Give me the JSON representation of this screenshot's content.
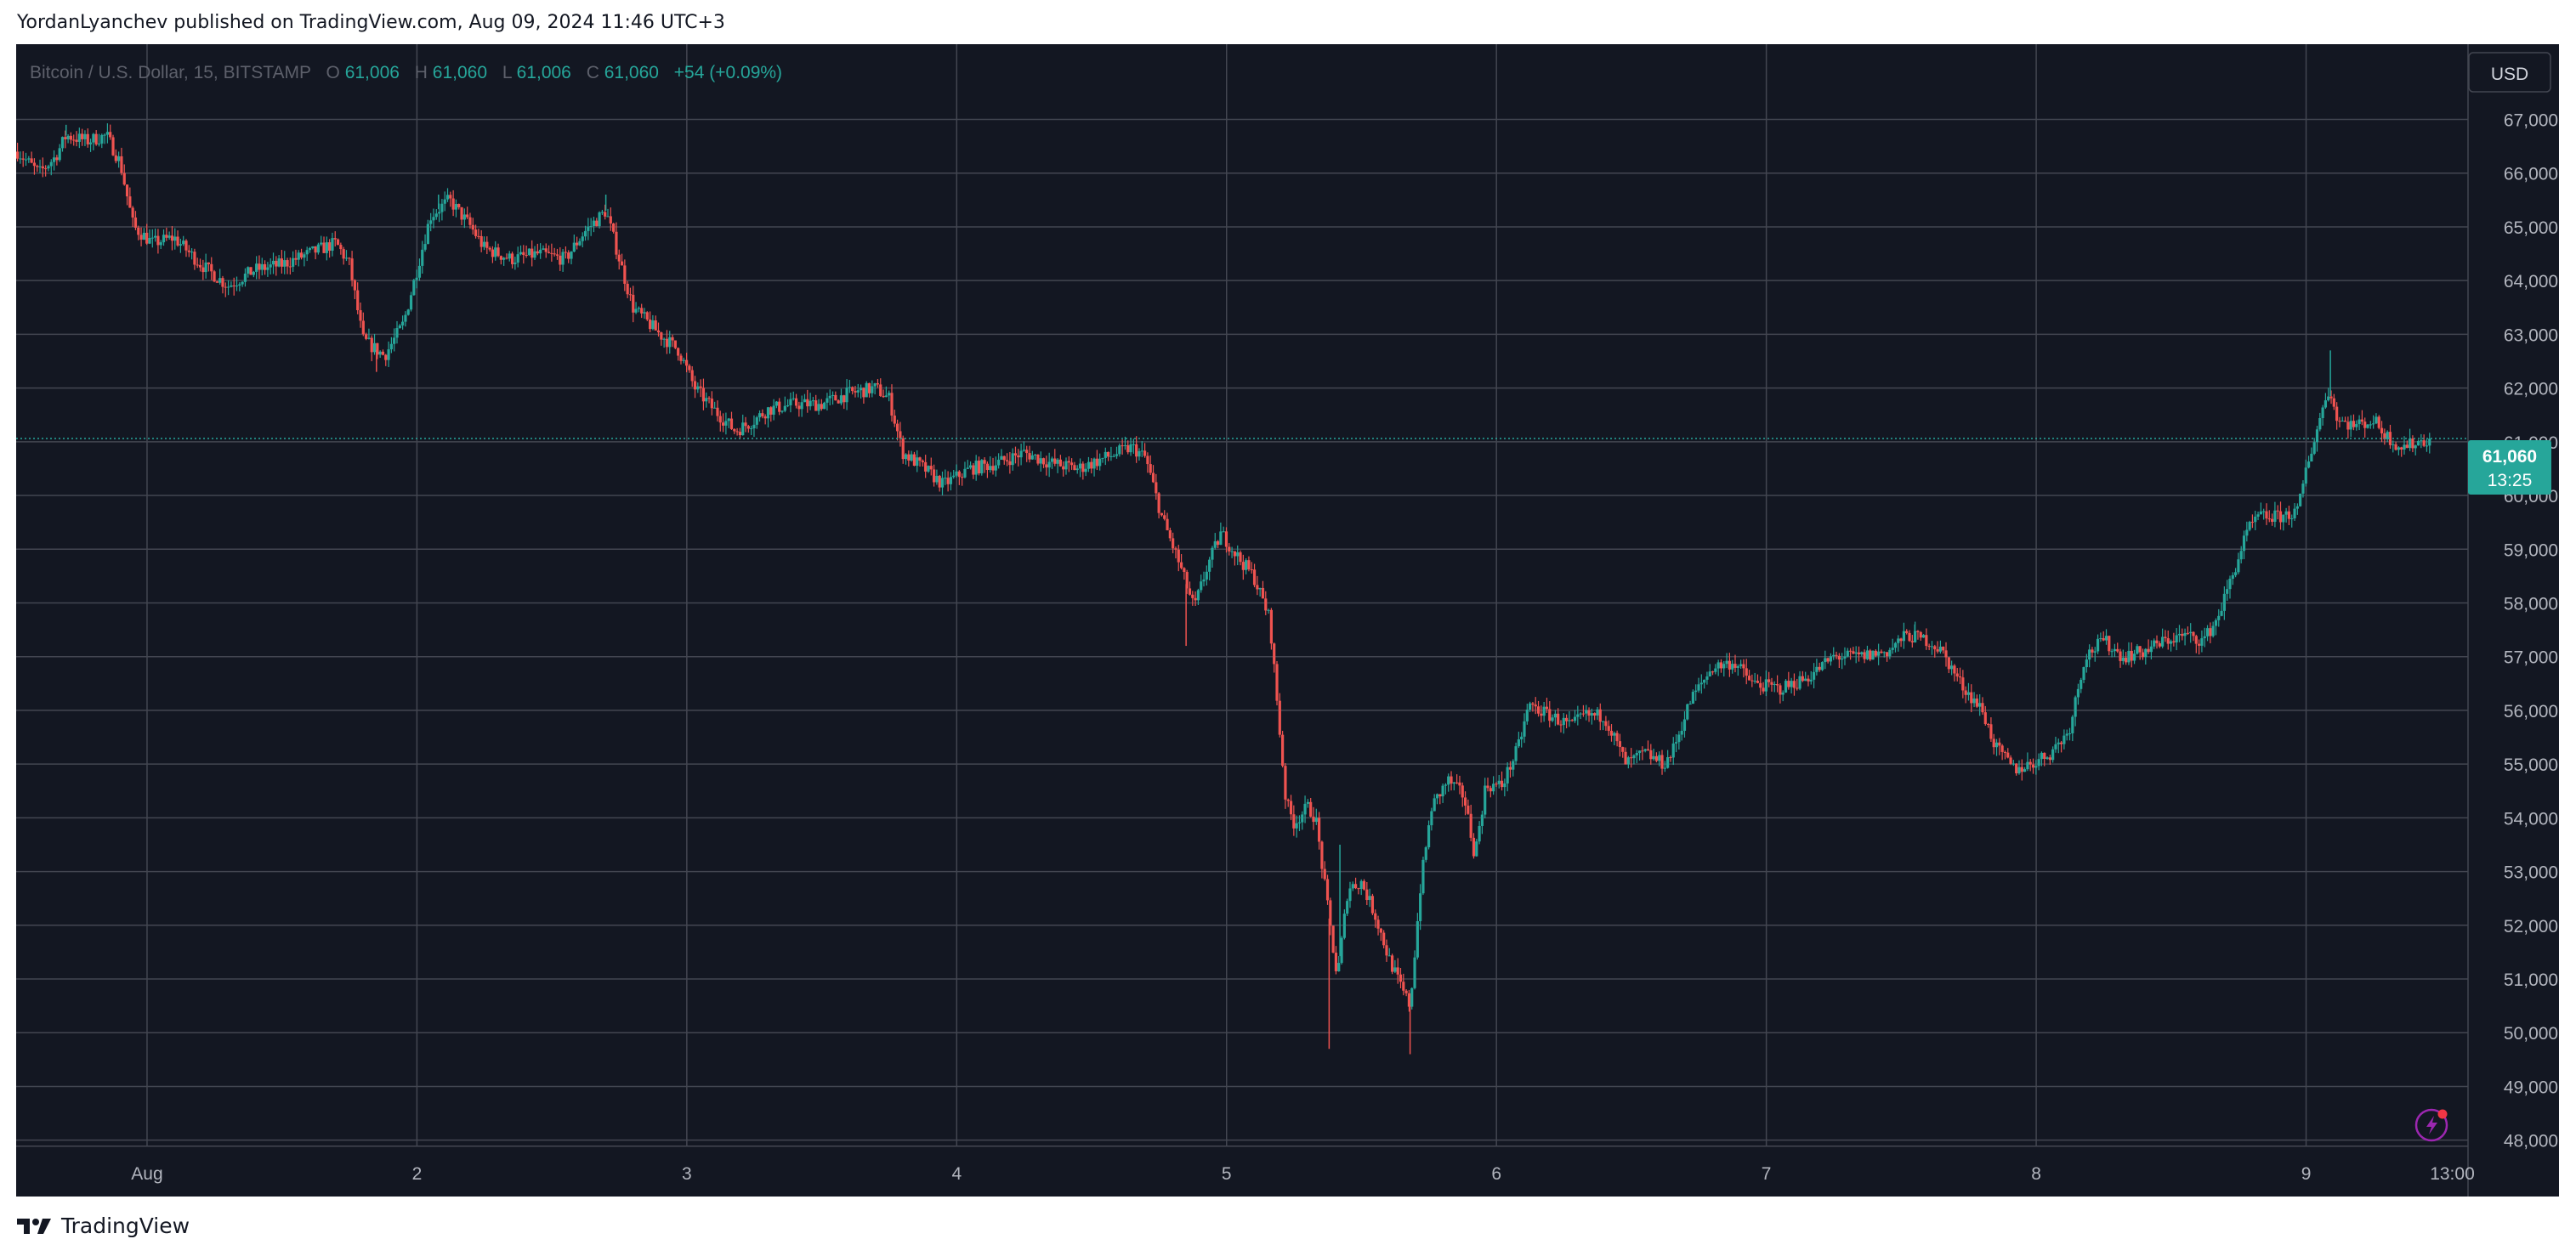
{
  "header": {
    "published_by": "YordanLyanchev published on TradingView.com, Aug 09, 2024 11:46 UTC+3"
  },
  "footer": {
    "brand": "TradingView"
  },
  "colors": {
    "background": "#131722",
    "grid": "#434651",
    "up": "#26a69a",
    "down": "#ef5350",
    "text": "#b2b5be",
    "legend_title": "#5d606b"
  },
  "chart_data": {
    "type": "candlestick",
    "legend": {
      "symbol": "Bitcoin / U.S. Dollar, 15, BITSTAMP",
      "o_label": "O",
      "o_value": "61,006",
      "h_label": "H",
      "h_value": "61,060",
      "l_label": "L",
      "l_value": "61,006",
      "c_label": "C",
      "c_value": "61,060",
      "change": "+54 (+0.09%)"
    },
    "currency": "USD",
    "last_price_label": "61,060",
    "countdown_label": "13:25",
    "last_price": 61060,
    "ylim": [
      47900,
      68400
    ],
    "y_ticks": [
      "67,000",
      "66,000",
      "65,000",
      "64,000",
      "63,000",
      "62,000",
      "61,000",
      "60,000",
      "59,000",
      "58,000",
      "57,000",
      "56,000",
      "55,000",
      "54,000",
      "53,000",
      "52,000",
      "51,000",
      "50,000",
      "49,000",
      "48,000"
    ],
    "y_tick_values": [
      67000,
      66000,
      65000,
      64000,
      63000,
      62000,
      61000,
      60000,
      59000,
      58000,
      57000,
      56000,
      55000,
      54000,
      53000,
      52000,
      51000,
      50000,
      49000,
      48000
    ],
    "x_ticks": [
      "Aug",
      "2",
      "3",
      "4",
      "5",
      "6",
      "7",
      "8",
      "9",
      "13:00"
    ],
    "x_tick_values": [
      1.0,
      2.0,
      3.0,
      4.0,
      5.0,
      6.0,
      7.0,
      8.0,
      9.0,
      9.5417
    ],
    "x_unit": "day of August 2024",
    "xlim": [
      0.515,
      9.6
    ],
    "price_path": [
      [
        0.52,
        66400
      ],
      [
        0.6,
        66000
      ],
      [
        0.66,
        66300
      ],
      [
        0.7,
        66700
      ],
      [
        0.78,
        66600
      ],
      [
        0.85,
        66700
      ],
      [
        0.9,
        66200
      ],
      [
        0.95,
        65000
      ],
      [
        1.02,
        64700
      ],
      [
        1.1,
        64800
      ],
      [
        1.2,
        64300
      ],
      [
        1.3,
        63900
      ],
      [
        1.4,
        64200
      ],
      [
        1.5,
        64300
      ],
      [
        1.6,
        64500
      ],
      [
        1.7,
        64700
      ],
      [
        1.75,
        64300
      ],
      [
        1.8,
        62900
      ],
      [
        1.88,
        62600
      ],
      [
        1.95,
        63200
      ],
      [
        2.0,
        64200
      ],
      [
        2.05,
        65200
      ],
      [
        2.12,
        65500
      ],
      [
        2.2,
        65000
      ],
      [
        2.25,
        64600
      ],
      [
        2.35,
        64400
      ],
      [
        2.45,
        64500
      ],
      [
        2.55,
        64400
      ],
      [
        2.62,
        64900
      ],
      [
        2.7,
        65300
      ],
      [
        2.75,
        64400
      ],
      [
        2.8,
        63500
      ],
      [
        2.9,
        63000
      ],
      [
        2.97,
        62700
      ],
      [
        3.03,
        62000
      ],
      [
        3.1,
        61600
      ],
      [
        3.18,
        61200
      ],
      [
        3.25,
        61400
      ],
      [
        3.3,
        61600
      ],
      [
        3.4,
        61700
      ],
      [
        3.5,
        61700
      ],
      [
        3.6,
        61900
      ],
      [
        3.7,
        62000
      ],
      [
        3.75,
        61800
      ],
      [
        3.8,
        60800
      ],
      [
        3.88,
        60500
      ],
      [
        3.95,
        60200
      ],
      [
        4.05,
        60500
      ],
      [
        4.15,
        60600
      ],
      [
        4.25,
        60800
      ],
      [
        4.35,
        60600
      ],
      [
        4.45,
        60500
      ],
      [
        4.55,
        60700
      ],
      [
        4.65,
        60900
      ],
      [
        4.7,
        60700
      ],
      [
        4.76,
        59600
      ],
      [
        4.82,
        58800
      ],
      [
        4.88,
        57900
      ],
      [
        4.93,
        58700
      ],
      [
        4.98,
        59300
      ],
      [
        5.05,
        58800
      ],
      [
        5.1,
        58500
      ],
      [
        5.16,
        57700
      ],
      [
        5.19,
        56000
      ],
      [
        5.22,
        54300
      ],
      [
        5.25,
        53900
      ],
      [
        5.3,
        54200
      ],
      [
        5.33,
        54000
      ],
      [
        5.37,
        52500
      ],
      [
        5.41,
        51000
      ],
      [
        5.45,
        52700
      ],
      [
        5.5,
        52800
      ],
      [
        5.55,
        52200
      ],
      [
        5.6,
        51400
      ],
      [
        5.65,
        50800
      ],
      [
        5.68,
        50500
      ],
      [
        5.72,
        52800
      ],
      [
        5.76,
        54200
      ],
      [
        5.82,
        54700
      ],
      [
        5.88,
        54400
      ],
      [
        5.92,
        53300
      ],
      [
        5.96,
        54600
      ],
      [
        6.02,
        54600
      ],
      [
        6.08,
        55300
      ],
      [
        6.12,
        56100
      ],
      [
        6.2,
        55900
      ],
      [
        6.28,
        55700
      ],
      [
        6.32,
        55900
      ],
      [
        6.4,
        55900
      ],
      [
        6.48,
        55000
      ],
      [
        6.55,
        55200
      ],
      [
        6.62,
        55000
      ],
      [
        6.65,
        55200
      ],
      [
        6.72,
        56200
      ],
      [
        6.8,
        56800
      ],
      [
        6.88,
        56900
      ],
      [
        6.95,
        56500
      ],
      [
        7.05,
        56400
      ],
      [
        7.15,
        56600
      ],
      [
        7.25,
        57000
      ],
      [
        7.35,
        57000
      ],
      [
        7.45,
        57100
      ],
      [
        7.52,
        57400
      ],
      [
        7.6,
        57300
      ],
      [
        7.65,
        57100
      ],
      [
        7.72,
        56500
      ],
      [
        7.8,
        56000
      ],
      [
        7.85,
        55300
      ],
      [
        7.92,
        54900
      ],
      [
        7.98,
        55000
      ],
      [
        8.05,
        55200
      ],
      [
        8.12,
        55600
      ],
      [
        8.18,
        57000
      ],
      [
        8.25,
        57300
      ],
      [
        8.32,
        57000
      ],
      [
        8.4,
        57100
      ],
      [
        8.48,
        57300
      ],
      [
        8.55,
        57400
      ],
      [
        8.62,
        57300
      ],
      [
        8.67,
        57700
      ],
      [
        8.72,
        58400
      ],
      [
        8.78,
        59300
      ],
      [
        8.82,
        59600
      ],
      [
        8.9,
        59600
      ],
      [
        8.97,
        59700
      ],
      [
        9.0,
        60500
      ],
      [
        9.05,
        61400
      ],
      [
        9.08,
        62000
      ],
      [
        9.12,
        61400
      ],
      [
        9.18,
        61300
      ],
      [
        9.25,
        61400
      ],
      [
        9.3,
        61100
      ],
      [
        9.35,
        60900
      ],
      [
        9.42,
        61000
      ],
      [
        9.465,
        61060
      ]
    ],
    "notable_extremes": [
      [
        0.7,
        66900
      ],
      [
        2.08,
        65600
      ],
      [
        2.7,
        65600
      ],
      [
        1.85,
        62300
      ],
      [
        4.85,
        57200
      ],
      [
        5.38,
        49700
      ],
      [
        5.68,
        49600
      ],
      [
        9.09,
        62700
      ],
      [
        5.42,
        53500
      ],
      [
        7.55,
        57600
      ]
    ],
    "grid": "on",
    "legend_position": "top-left",
    "price_scale_position": "right"
  }
}
